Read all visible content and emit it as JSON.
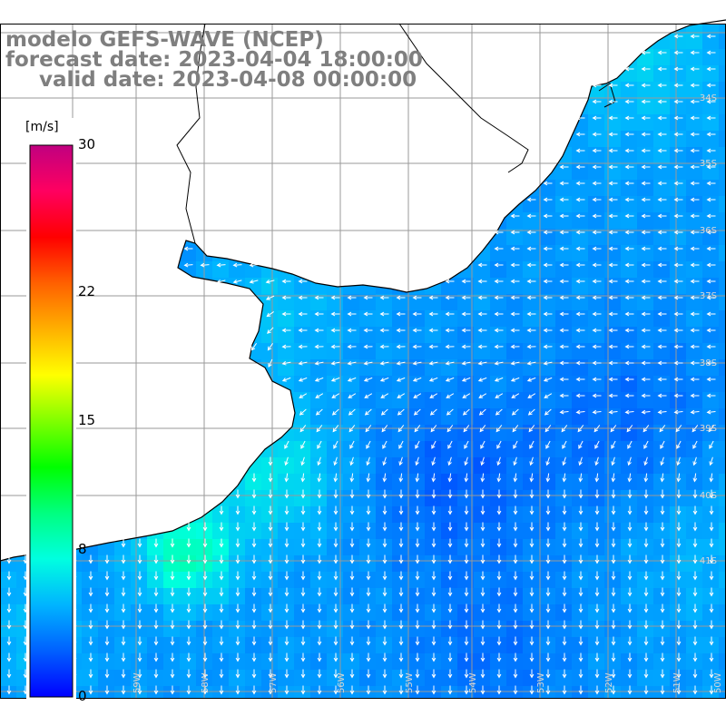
{
  "title": {
    "model": "modelo GEFS-WAVE (NCEP)",
    "forecast": "forecast date: 2023-04-04 18:00:00",
    "valid": "valid date: 2023-04-08 00:00:00"
  },
  "colorbar": {
    "unit": "[m/s]",
    "ticks": [
      {
        "value": 30,
        "label": "30"
      },
      {
        "value": 22,
        "label": "22"
      },
      {
        "value": 15,
        "label": "15"
      },
      {
        "value": 8,
        "label": "8"
      },
      {
        "value": 0,
        "label": "0"
      }
    ],
    "range": [
      0,
      30
    ],
    "colors": [
      "#0000ff",
      "#0060ff",
      "#00b4ff",
      "#00ffe0",
      "#00ff80",
      "#00ff00",
      "#80ff00",
      "#ffff00",
      "#ffb000",
      "#ff6000",
      "#ff0000",
      "#ff0060",
      "#c00080"
    ]
  },
  "map": {
    "land_color": "#ffffff",
    "grid_color": "#9a9a9a",
    "vector_color": "#ffffff",
    "grid_lines": true,
    "lat_labels": [
      "34S",
      "35S",
      "36S",
      "37S",
      "38S",
      "39S",
      "40S",
      "41S"
    ],
    "lon_labels": [
      "60W",
      "59W",
      "58W",
      "57W",
      "56W",
      "55W",
      "54W",
      "53W",
      "52W",
      "51W",
      "50W"
    ]
  }
}
